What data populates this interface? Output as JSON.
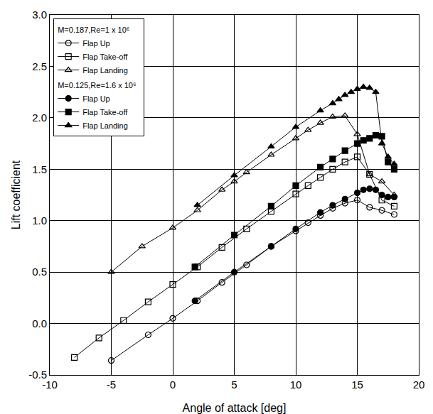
{
  "chart_data": {
    "type": "line",
    "x_label": "Angle of attack [deg]",
    "y_label": "Lift coefficient",
    "xlim": [
      -10,
      20
    ],
    "xticks": [
      -10,
      -5,
      0,
      5,
      10,
      15,
      20
    ],
    "ylim": [
      -0.5,
      3.0
    ],
    "yticks": [
      {
        "value": -0.5,
        "label": "-0.5"
      },
      {
        "value": 0,
        "label": "0.0"
      },
      {
        "value": 0.5,
        "label": "0.5"
      },
      {
        "value": 1,
        "label": "1.0"
      },
      {
        "value": 1.5,
        "label": "1.5"
      },
      {
        "value": 2,
        "label": "2.0"
      },
      {
        "value": 2.5,
        "label": "2.5"
      },
      {
        "value": 3,
        "label": "3.0"
      }
    ],
    "grid": true,
    "legend": "upper left",
    "annotations": [
      "M=0.187,Re=1 x 10⁶",
      "M=0.125,Re=1.6 x 10⁶"
    ],
    "series": [
      {
        "name": "Flap Up",
        "color": "#000000",
        "marker": "circle-open",
        "line_style": "solid",
        "x": [
          -5,
          -2,
          0,
          2,
          4,
          6,
          8,
          10,
          11,
          12,
          13,
          14,
          15,
          16,
          17,
          18
        ],
        "values": [
          -0.36,
          -0.11,
          0.05,
          0.22,
          0.4,
          0.57,
          0.75,
          0.9,
          0.98,
          1.05,
          1.12,
          1.17,
          1.2,
          1.13,
          1.1,
          1.06
        ]
      },
      {
        "name": "Flap Take-off",
        "color": "#000000",
        "marker": "square-open",
        "line_style": "solid",
        "x": [
          -8,
          -6,
          -4,
          -2,
          0,
          2,
          4,
          6,
          8,
          10,
          11,
          12,
          13,
          14,
          15,
          16,
          17,
          18
        ],
        "values": [
          -0.33,
          -0.14,
          0.03,
          0.21,
          0.38,
          0.55,
          0.74,
          0.92,
          1.09,
          1.26,
          1.34,
          1.42,
          1.5,
          1.57,
          1.62,
          1.45,
          1.2,
          1.14
        ]
      },
      {
        "name": "Flap Landing",
        "color": "#000000",
        "marker": "triangle-up-open",
        "line_style": "solid",
        "x": [
          -5,
          -2.5,
          0,
          2,
          4,
          5,
          6,
          8,
          10,
          11,
          12,
          13,
          14,
          15,
          16,
          17,
          18
        ],
        "values": [
          0.5,
          0.75,
          0.93,
          1.1,
          1.3,
          1.38,
          1.47,
          1.64,
          1.8,
          1.88,
          1.95,
          2.01,
          2.02,
          1.84,
          1.45,
          1.38,
          1.25
        ]
      },
      {
        "name": "Flap Up",
        "color": "#000000",
        "marker": "circle",
        "line_style": "solid",
        "x": [
          1.8,
          5,
          8,
          10,
          12,
          13,
          14,
          15,
          15.5,
          16,
          16.5,
          17,
          17.5,
          18
        ],
        "values": [
          0.22,
          0.5,
          0.75,
          0.92,
          1.08,
          1.15,
          1.21,
          1.27,
          1.3,
          1.31,
          1.3,
          1.25,
          1.23,
          1.23
        ]
      },
      {
        "name": "Flap Take-off",
        "color": "#000000",
        "marker": "square",
        "line_style": "solid",
        "x": [
          1.8,
          5,
          8,
          10,
          12,
          13,
          14,
          15,
          15.5,
          16,
          16.5,
          17,
          17.5,
          18
        ],
        "values": [
          0.55,
          0.86,
          1.14,
          1.34,
          1.52,
          1.6,
          1.68,
          1.75,
          1.78,
          1.8,
          1.83,
          1.82,
          1.57,
          1.5
        ]
      },
      {
        "name": "Flap Landing",
        "color": "#000000",
        "marker": "triangle-up",
        "line_style": "solid",
        "x": [
          2,
          5,
          8,
          10,
          12,
          13,
          13.5,
          14,
          14.5,
          15,
          15.5,
          16,
          16.5,
          17,
          17.5,
          18
        ],
        "values": [
          1.15,
          1.44,
          1.72,
          1.91,
          2.07,
          2.14,
          2.18,
          2.22,
          2.25,
          2.28,
          2.3,
          2.29,
          2.25,
          1.75,
          1.62,
          1.55
        ]
      }
    ]
  }
}
